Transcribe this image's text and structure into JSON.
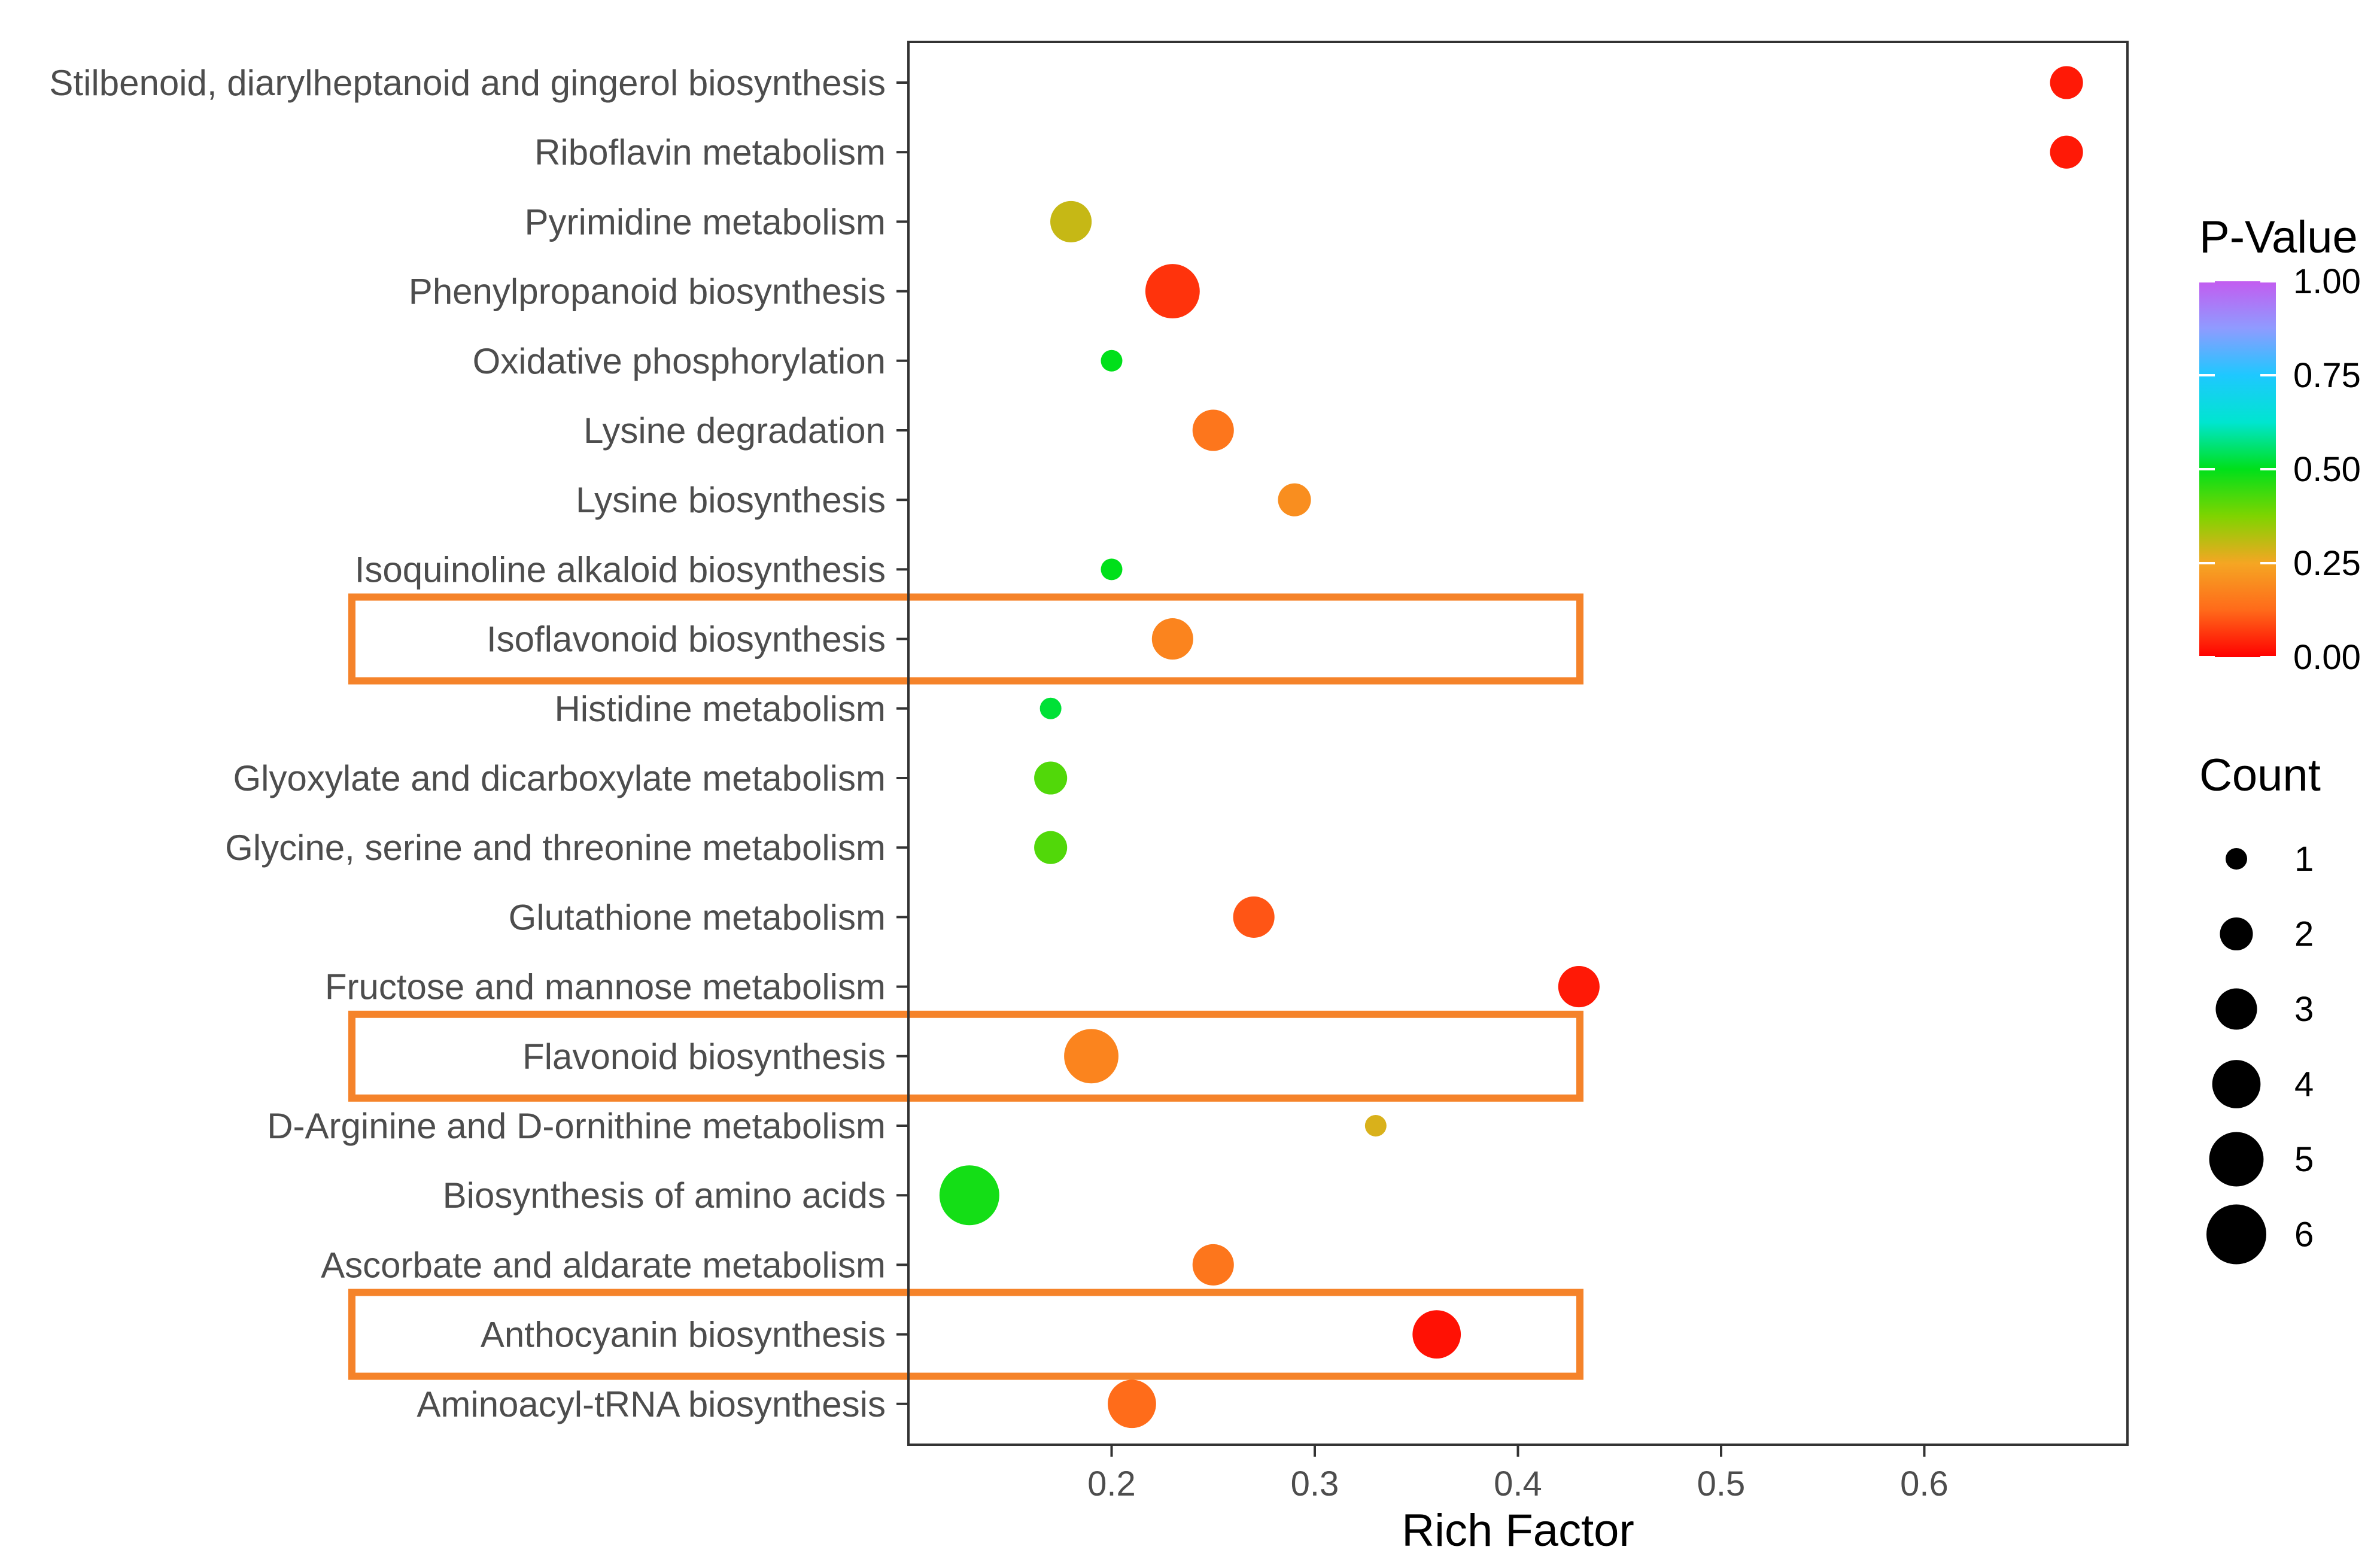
{
  "chart_data": {
    "type": "scatter",
    "title": "",
    "xlabel": "Rich Factor",
    "ylabel": "",
    "xlim": [
      0.1,
      0.7
    ],
    "xticks": [
      0.2,
      0.3,
      0.4,
      0.5,
      0.6
    ],
    "xtick_labels": [
      "0.2",
      "0.3",
      "0.4",
      "0.5",
      "0.6"
    ],
    "grid": false,
    "categories": [
      "Stilbenoid, diarylheptanoid and gingerol biosynthesis",
      "Riboflavin metabolism",
      "Pyrimidine metabolism",
      "Phenylpropanoid biosynthesis",
      "Oxidative phosphorylation",
      "Lysine degradation",
      "Lysine biosynthesis",
      "Isoquinoline alkaloid biosynthesis",
      "Isoflavonoid biosynthesis",
      "Histidine metabolism",
      "Glyoxylate and dicarboxylate metabolism",
      "Glycine, serine and threonine metabolism",
      "Glutathione metabolism",
      "Fructose and mannose metabolism",
      "Flavonoid biosynthesis",
      "D-Arginine and D-ornithine metabolism",
      "Biosynthesis of amino acids",
      "Ascorbate and aldarate metabolism",
      "Anthocyanin biosynthesis",
      "Aminoacyl-tRNA biosynthesis"
    ],
    "rich_factor": [
      0.67,
      0.67,
      0.18,
      0.23,
      0.2,
      0.25,
      0.29,
      0.2,
      0.23,
      0.17,
      0.17,
      0.17,
      0.27,
      0.43,
      0.19,
      0.33,
      0.13,
      0.25,
      0.36,
      0.21
    ],
    "count": [
      2,
      2,
      3,
      5,
      1,
      3,
      2,
      1,
      3,
      1,
      2,
      2,
      3,
      3,
      5,
      1,
      6,
      3,
      4,
      4
    ],
    "p_value": [
      0.03,
      0.03,
      0.3,
      0.06,
      0.5,
      0.15,
      0.2,
      0.5,
      0.18,
      0.52,
      0.42,
      0.42,
      0.1,
      0.03,
      0.18,
      0.28,
      0.48,
      0.15,
      0.02,
      0.13
    ],
    "highlighted": [
      "Isoflavonoid biosynthesis",
      "Flavonoid biosynthesis",
      "Anthocyanin biosynthesis"
    ],
    "color_legend": {
      "title": "P-Value",
      "range": [
        0,
        1
      ],
      "ticks": [
        1.0,
        0.75,
        0.5,
        0.25,
        0.0
      ],
      "tick_labels": [
        "1.00",
        "0.75",
        "0.50",
        "0.25",
        "0.00"
      ],
      "gradient_colors": [
        "#ff0000",
        "#ff6a1a",
        "#f5a623",
        "#7fd400",
        "#00e01a",
        "#00e5d0",
        "#1ec8ff",
        "#8f9bff",
        "#c35cf0"
      ]
    },
    "size_legend": {
      "title": "Count",
      "values": [
        1,
        2,
        3,
        4,
        5,
        6
      ],
      "labels": [
        "1",
        "2",
        "3",
        "4",
        "5",
        "6"
      ]
    }
  },
  "colors": {
    "highlight_box": "#f5832a",
    "panel_border": "#333333",
    "tick_color": "#333333",
    "legend_dot": "#000000"
  }
}
